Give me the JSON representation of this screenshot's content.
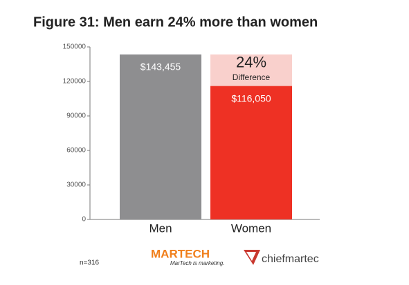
{
  "chart_data": {
    "type": "bar",
    "title": "Figure 31: Men earn 24% more than women",
    "categories": [
      "Men",
      "Women"
    ],
    "values": [
      143455,
      116050
    ],
    "value_labels": [
      "$143,455",
      "$116,050"
    ],
    "colors": [
      "#8e8e90",
      "#ee3124"
    ],
    "difference": {
      "value": 27405,
      "color": "#f9d0cc",
      "label": "24%",
      "caption": "Difference"
    },
    "ylim": [
      0,
      150000
    ],
    "yticks": [
      0,
      30000,
      60000,
      90000,
      120000,
      150000
    ],
    "grid": false,
    "footnote": "n=316",
    "logos": {
      "martech": "MARTECH",
      "martech_tagline": "MarTech is marketing.",
      "chiefmartec": "chiefmartec"
    }
  }
}
